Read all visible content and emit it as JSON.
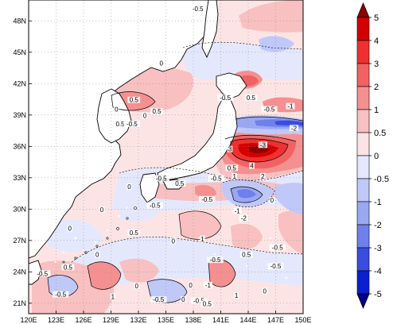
{
  "map": {
    "lon_range": [
      120,
      150
    ],
    "lat_range": [
      20,
      50
    ],
    "lon_ticks": [
      "120E",
      "123E",
      "126E",
      "129E",
      "132E",
      "135E",
      "138E",
      "141E",
      "144E",
      "147E",
      "150E"
    ],
    "lat_ticks": [
      "21N",
      "24N",
      "27N",
      "30N",
      "33N",
      "36N",
      "39N",
      "42N",
      "45N",
      "48N"
    ],
    "grid": true,
    "coastline_color": "#000000",
    "land_color": "#ffffff"
  },
  "colorbar": {
    "labels": [
      "5",
      "4",
      "3",
      "2",
      "1",
      "0.5",
      "0",
      "-0.5",
      "-1",
      "-2",
      "-3",
      "-4",
      "-5"
    ],
    "colors": [
      "#8b0000",
      "#d40000",
      "#f03030",
      "#f26262",
      "#f59090",
      "#f8c0c0",
      "#fde4e4",
      "#e4e8fd",
      "#c0c8f8",
      "#9aa8f2",
      "#6f7fec",
      "#3a4de0",
      "#0a1fd0",
      "#00008b"
    ]
  },
  "contour_labels": [
    {
      "t": "-0.5",
      "lon": 138.5,
      "lat": 49.0
    },
    {
      "t": "0",
      "lon": 134.5,
      "lat": 43.8
    },
    {
      "t": "0.5",
      "lon": 130.0,
      "lat": 38.0
    },
    {
      "t": "-0.5",
      "lon": 131.3,
      "lat": 38.0
    },
    {
      "t": "0",
      "lon": 132.7,
      "lat": 38.8
    },
    {
      "t": "0.5",
      "lon": 134.0,
      "lat": 39.2
    },
    {
      "t": "0.5",
      "lon": 131.5,
      "lat": 40.3
    },
    {
      "t": "0",
      "lon": 129.6,
      "lat": 39.4
    },
    {
      "t": "-0.5",
      "lon": 141.5,
      "lat": 40.5
    },
    {
      "t": "0.5",
      "lon": 144.3,
      "lat": 40.5
    },
    {
      "t": "-0.5",
      "lon": 146.3,
      "lat": 39.4
    },
    {
      "t": "-1",
      "lon": 148.6,
      "lat": 39.7
    },
    {
      "t": "-2",
      "lon": 149.0,
      "lat": 37.6
    },
    {
      "t": "-3",
      "lon": 145.6,
      "lat": 36.0
    },
    {
      "t": "3",
      "lon": 142.0,
      "lat": 35.6
    },
    {
      "t": "4",
      "lon": 144.4,
      "lat": 34.0
    },
    {
      "t": "2",
      "lon": 145.6,
      "lat": 33.0
    },
    {
      "t": "1",
      "lon": 142.5,
      "lat": 33.0
    },
    {
      "t": "0.5",
      "lon": 142.2,
      "lat": 33.8
    },
    {
      "t": "-0.5",
      "lon": 140.5,
      "lat": 32.8
    },
    {
      "t": "0.5",
      "lon": 136.5,
      "lat": 32.3
    },
    {
      "t": "-0.5",
      "lon": 134.5,
      "lat": 32.8
    },
    {
      "t": "0",
      "lon": 131.0,
      "lat": 32.0
    },
    {
      "t": "0",
      "lon": 146.6,
      "lat": 30.7
    },
    {
      "t": "-0.5",
      "lon": 139.5,
      "lat": 30.8
    },
    {
      "t": "-2",
      "lon": 143.5,
      "lat": 29.0
    },
    {
      "t": "-1",
      "lon": 142.8,
      "lat": 29.7
    },
    {
      "t": "-0.5",
      "lon": 133.8,
      "lat": 30.2
    },
    {
      "t": "0",
      "lon": 128.0,
      "lat": 29.8
    },
    {
      "t": "0",
      "lon": 124.5,
      "lat": 28.0
    },
    {
      "t": "1",
      "lon": 139.0,
      "lat": 27.0
    },
    {
      "t": "0.5",
      "lon": 131.5,
      "lat": 27.6
    },
    {
      "t": "0",
      "lon": 135.8,
      "lat": 26.8
    },
    {
      "t": "-0.5",
      "lon": 147.2,
      "lat": 26.2
    },
    {
      "t": "0.5",
      "lon": 143.8,
      "lat": 25.5
    },
    {
      "t": "-0.5",
      "lon": 140.4,
      "lat": 25.0
    },
    {
      "t": "0",
      "lon": 127.5,
      "lat": 25.5
    },
    {
      "t": "0.5",
      "lon": 124.3,
      "lat": 24.3
    },
    {
      "t": "-0.5",
      "lon": 121.5,
      "lat": 23.7
    },
    {
      "t": "-0.5",
      "lon": 123.5,
      "lat": 21.7
    },
    {
      "t": "1",
      "lon": 129.2,
      "lat": 21.5
    },
    {
      "t": "0",
      "lon": 131.8,
      "lat": 22.5
    },
    {
      "t": "-0.5",
      "lon": 134.2,
      "lat": 21.2
    },
    {
      "t": "0",
      "lon": 136.9,
      "lat": 21.2
    },
    {
      "t": "0",
      "lon": 137.7,
      "lat": 22.6
    },
    {
      "t": "-1",
      "lon": 139.6,
      "lat": 22.6
    },
    {
      "t": "-0.5",
      "lon": 138.6,
      "lat": 21.1
    },
    {
      "t": "0.5",
      "lon": 139.5,
      "lat": 20.8
    },
    {
      "t": "1",
      "lon": 142.7,
      "lat": 21.6
    },
    {
      "t": "0",
      "lon": 145.8,
      "lat": 22.0
    },
    {
      "t": "-0.5",
      "lon": 147.0,
      "lat": 24.4
    }
  ]
}
